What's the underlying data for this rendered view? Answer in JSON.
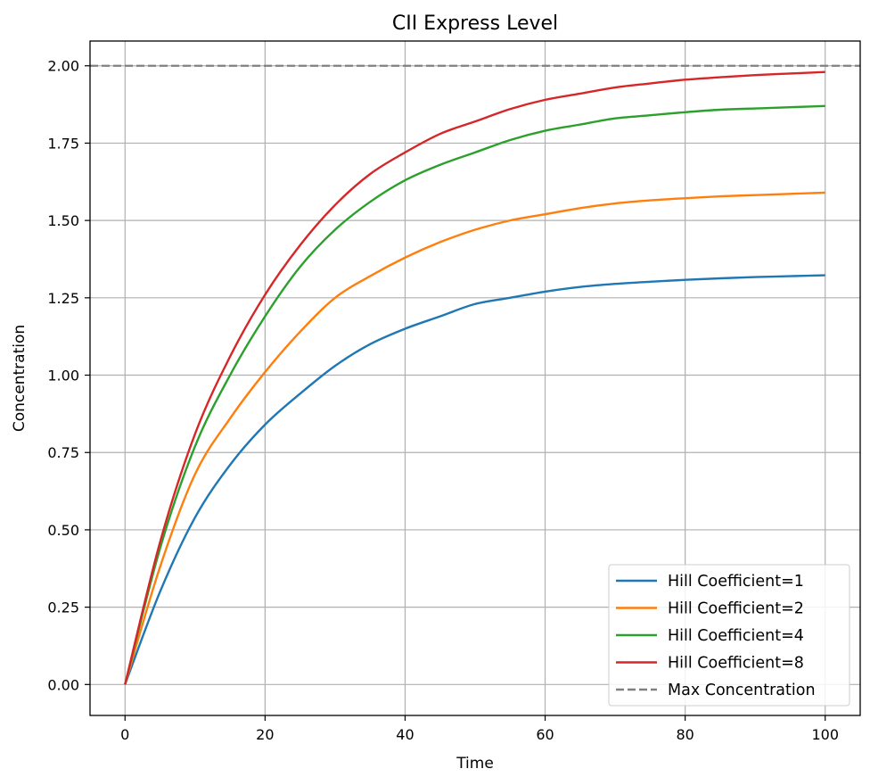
{
  "chart_data": {
    "type": "line",
    "title": "CII Express Level",
    "xlabel": "Time",
    "ylabel": "Concentration",
    "xlim": [
      -5,
      105
    ],
    "ylim": [
      -0.1,
      2.08
    ],
    "x_ticks": [
      0,
      20,
      40,
      60,
      80,
      100
    ],
    "x_tick_labels": [
      "0",
      "20",
      "40",
      "60",
      "80",
      "100"
    ],
    "y_ticks": [
      0,
      0.25,
      0.5,
      0.75,
      1.0,
      1.25,
      1.5,
      1.75,
      2.0
    ],
    "y_tick_labels": [
      "0.00",
      "0.25",
      "0.50",
      "0.75",
      "1.00",
      "1.25",
      "1.50",
      "1.75",
      "2.00"
    ],
    "grid": true,
    "legend_position": "lower-right",
    "x": [
      0,
      5,
      10,
      15,
      20,
      25,
      30,
      35,
      40,
      45,
      50,
      55,
      60,
      65,
      70,
      75,
      80,
      85,
      90,
      95,
      100
    ],
    "series": [
      {
        "name": "Hill Coefficient=1",
        "color": "#1f77b4",
        "style": "solid",
        "values": [
          0.0,
          0.3,
          0.54,
          0.71,
          0.84,
          0.94,
          1.03,
          1.1,
          1.15,
          1.19,
          1.23,
          1.25,
          1.27,
          1.285,
          1.295,
          1.302,
          1.308,
          1.313,
          1.317,
          1.32,
          1.323
        ]
      },
      {
        "name": "Hill Coefficient=2",
        "color": "#ff7f0e",
        "style": "solid",
        "values": [
          0.0,
          0.38,
          0.68,
          0.86,
          1.01,
          1.14,
          1.25,
          1.32,
          1.38,
          1.43,
          1.47,
          1.5,
          1.52,
          1.54,
          1.555,
          1.565,
          1.572,
          1.578,
          1.582,
          1.586,
          1.59
        ]
      },
      {
        "name": "Hill Coefficient=4",
        "color": "#2ca02c",
        "style": "solid",
        "values": [
          0.0,
          0.44,
          0.77,
          1.0,
          1.19,
          1.35,
          1.47,
          1.56,
          1.63,
          1.68,
          1.72,
          1.76,
          1.79,
          1.81,
          1.83,
          1.84,
          1.85,
          1.858,
          1.862,
          1.866,
          1.87
        ]
      },
      {
        "name": "Hill Coefficient=8",
        "color": "#d62728",
        "style": "solid",
        "values": [
          0.0,
          0.46,
          0.81,
          1.06,
          1.26,
          1.42,
          1.55,
          1.65,
          1.72,
          1.78,
          1.82,
          1.86,
          1.89,
          1.91,
          1.93,
          1.943,
          1.955,
          1.963,
          1.97,
          1.975,
          1.98
        ]
      }
    ],
    "reference_lines": [
      {
        "name": "Max Concentration",
        "y": 2.0,
        "color": "#808080",
        "style": "dashed"
      }
    ]
  }
}
